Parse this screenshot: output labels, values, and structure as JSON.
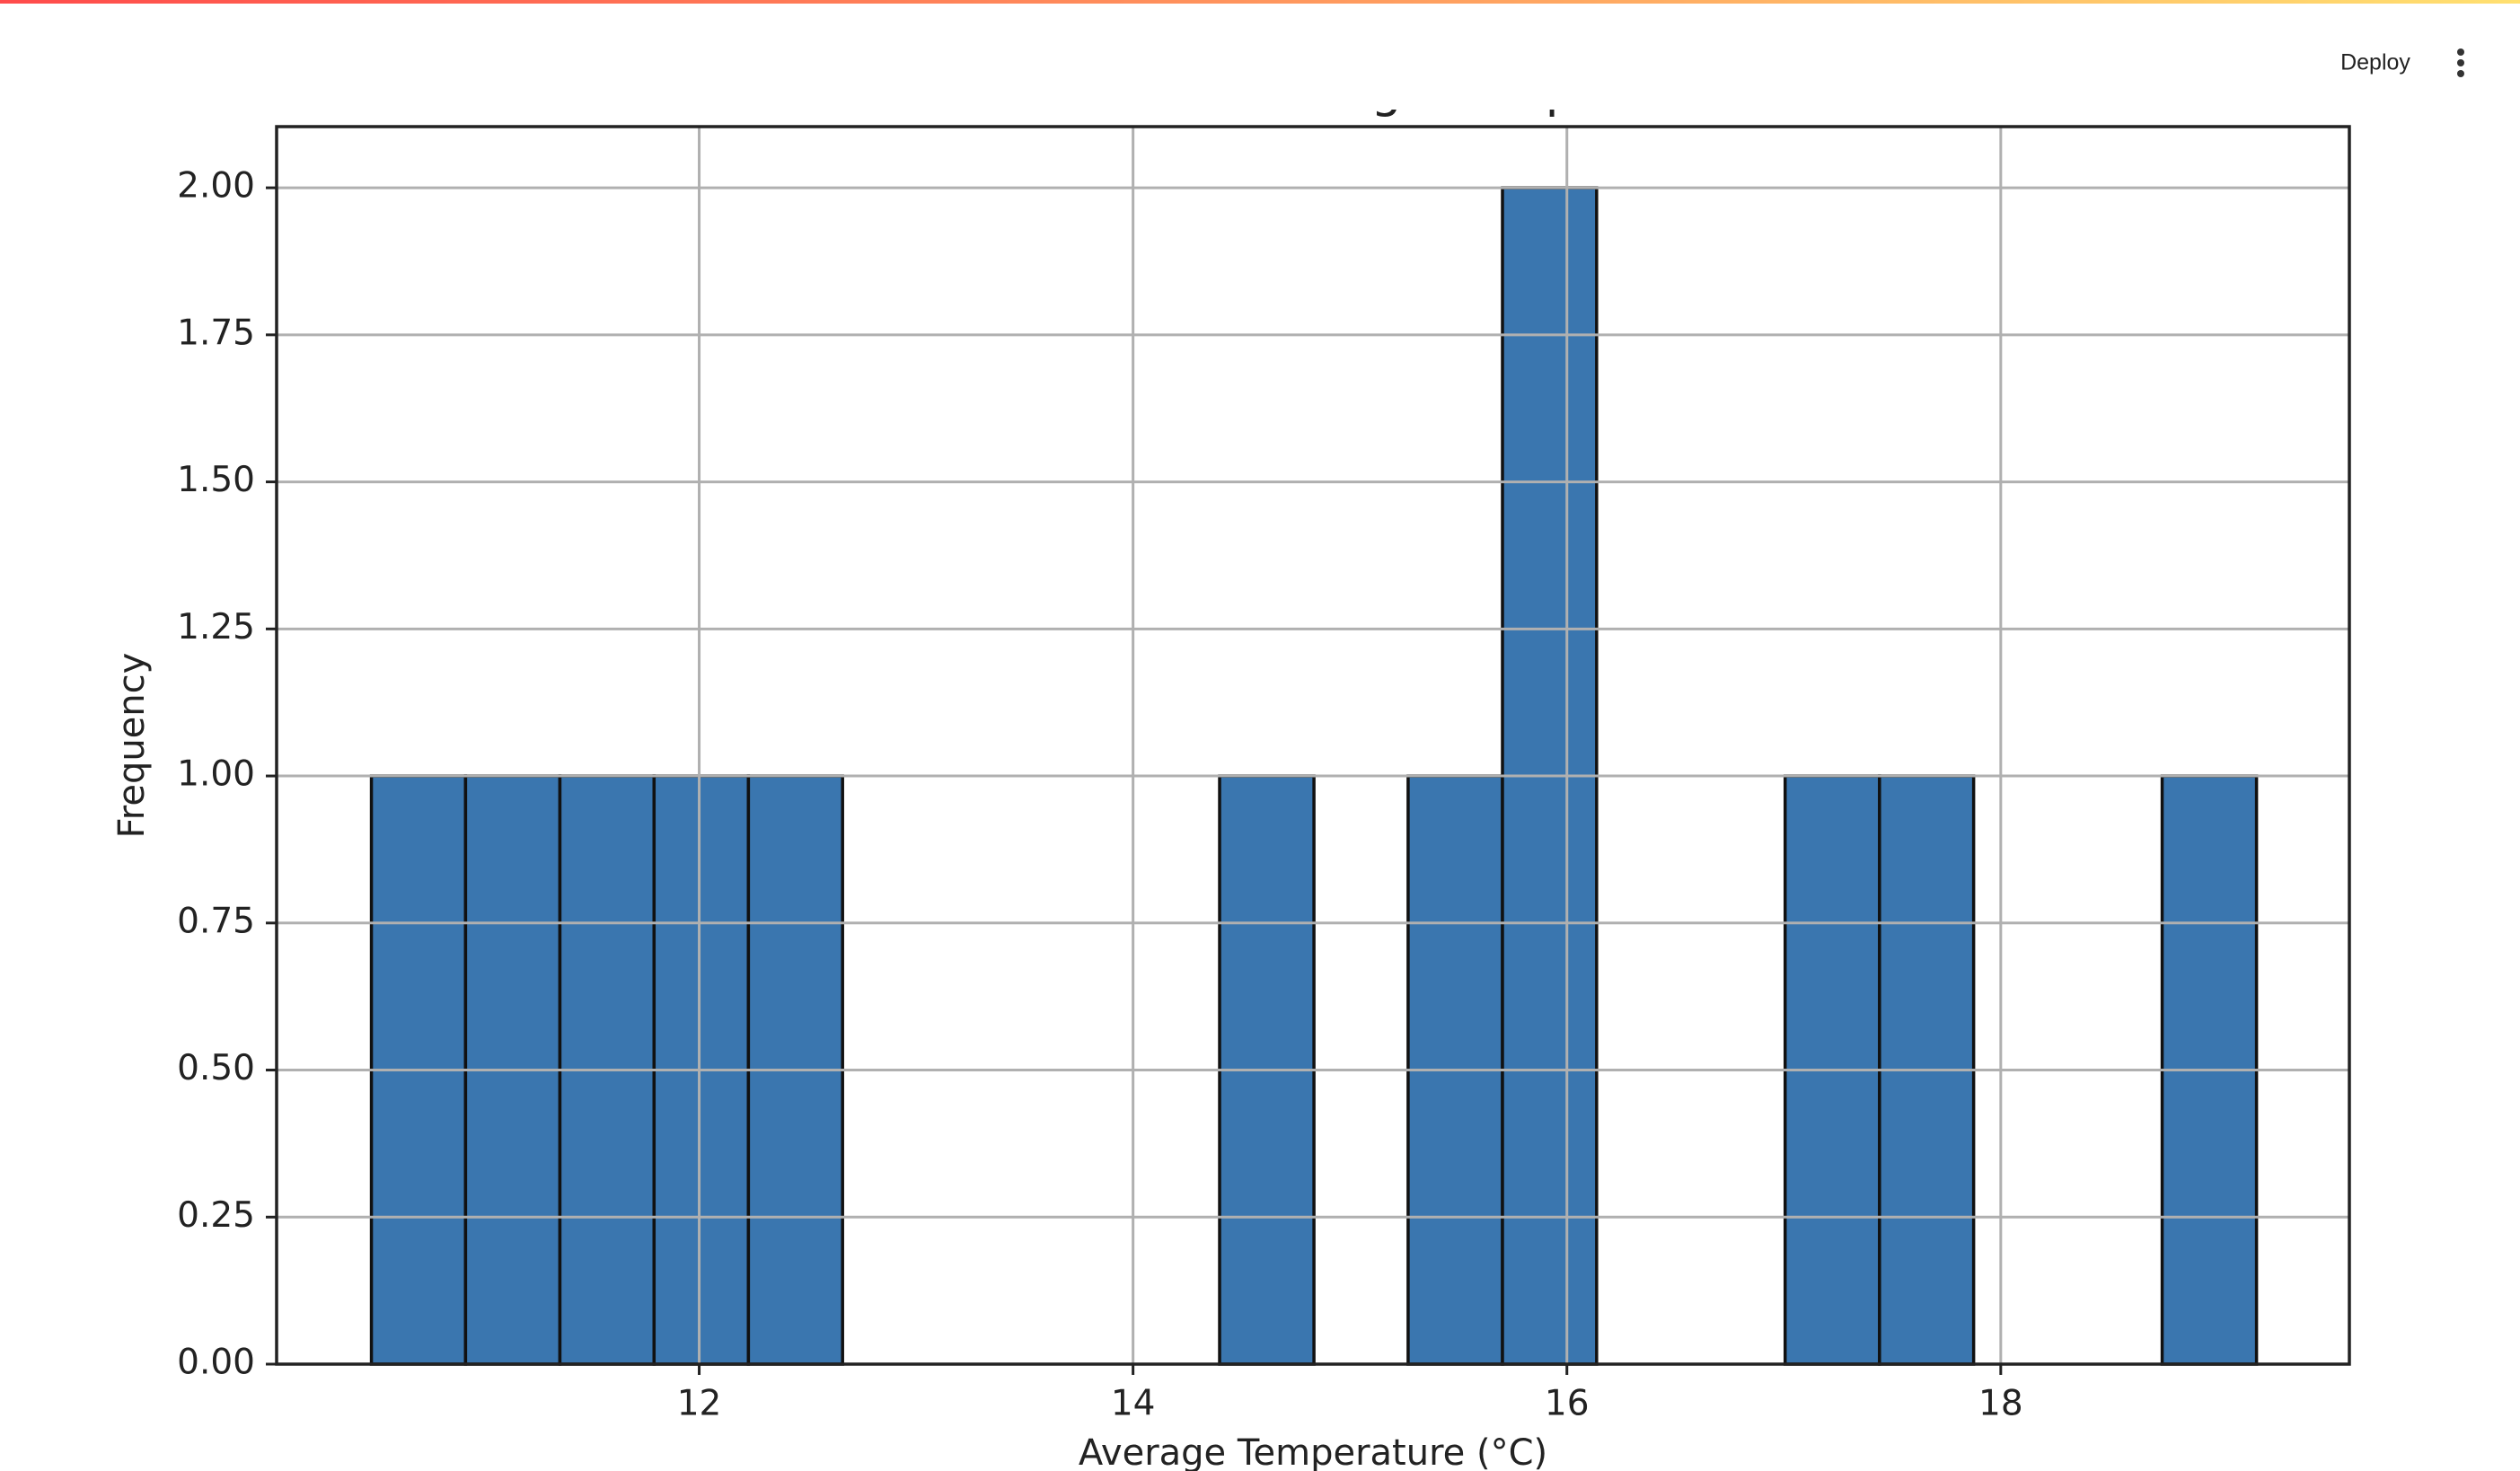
{
  "header": {
    "deploy": "Deploy"
  },
  "chart_data": {
    "type": "histogram",
    "title": "Distribution of Average Temperature",
    "xlabel": "Average Temperature (°C)",
    "ylabel": "Frequency",
    "bins": [
      10.489,
      10.923,
      11.358,
      11.792,
      12.227,
      12.661,
      13.096,
      13.53,
      13.965,
      14.399,
      14.834,
      15.268,
      15.703,
      16.137,
      16.572,
      17.006,
      17.441,
      17.875,
      18.31,
      18.744,
      19.179
    ],
    "counts": [
      1,
      1,
      1,
      1,
      1,
      0,
      0,
      0,
      0,
      1,
      0,
      1,
      2,
      0,
      0,
      1,
      1,
      0,
      0,
      1
    ],
    "color": "#3a76af",
    "edgecolor": "#111111",
    "xlim": [
      10.052,
      19.607
    ],
    "ylim": [
      0,
      2.104
    ],
    "xticks": [
      12,
      14,
      16,
      18
    ],
    "yticks": [
      {
        "value": 0,
        "label": "0.00"
      },
      {
        "value": 0.25,
        "label": "0.25"
      },
      {
        "value": 0.5,
        "label": "0.50"
      },
      {
        "value": 0.75,
        "label": "0.75"
      },
      {
        "value": 1,
        "label": "1.00"
      },
      {
        "value": 1.25,
        "label": "1.25"
      },
      {
        "value": 1.5,
        "label": "1.50"
      },
      {
        "value": 1.75,
        "label": "1.75"
      },
      {
        "value": 2,
        "label": "2.00"
      }
    ],
    "grid": true
  }
}
